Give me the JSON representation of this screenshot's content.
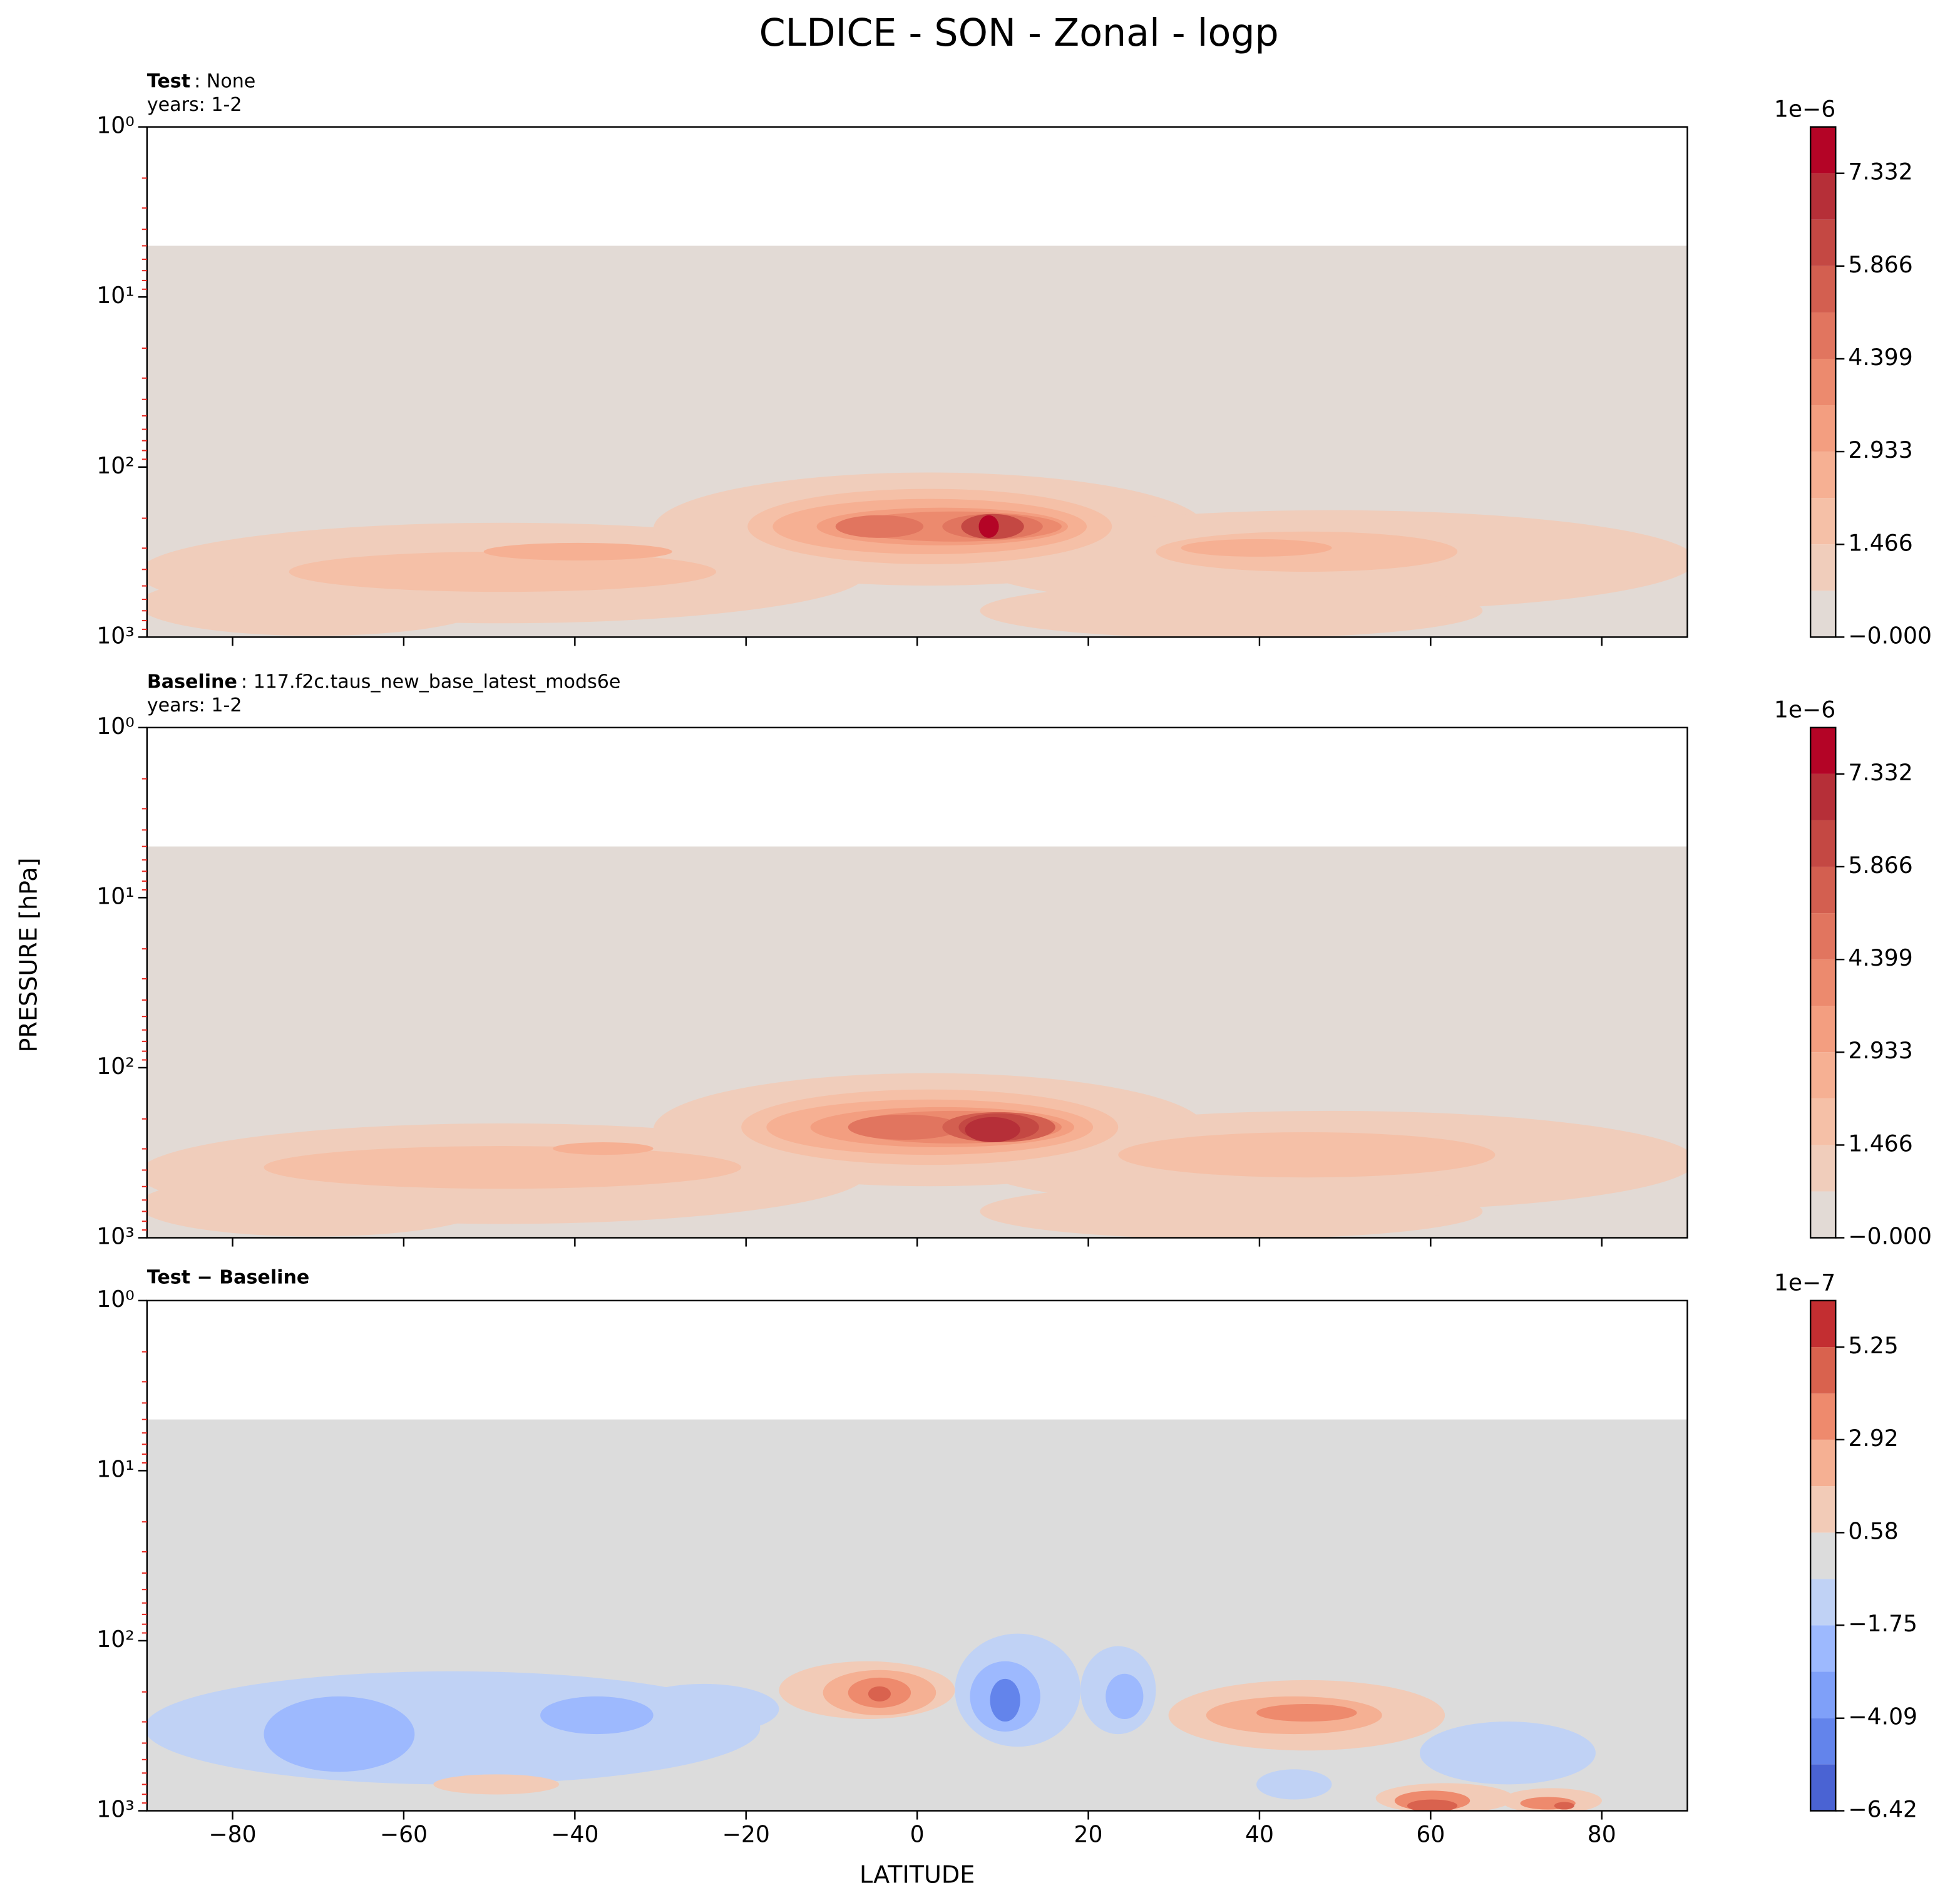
{
  "title": "CLDICE - SON - Zonal - logp",
  "xlabel": "LATITUDE",
  "ylabel": "PRESSURE [hPa]",
  "chart_data": [
    {
      "type": "contour",
      "title_bold": "Test",
      "title_rest": ": None",
      "subtitle": "years: 1-2",
      "xlim": [
        -90,
        90
      ],
      "xticks": [
        -80,
        -60,
        -40,
        -20,
        0,
        20,
        40,
        60,
        80
      ],
      "show_xticklabels": false,
      "ylim": [
        1,
        1000
      ],
      "log_y": true,
      "yticks": [
        {
          "value": 1,
          "label": "10⁰"
        },
        {
          "value": 10,
          "label": "10¹"
        },
        {
          "value": 100,
          "label": "10²"
        },
        {
          "value": 1000,
          "label": "10³"
        }
      ],
      "minor_tick_color": "#e8261f",
      "field_ptop": 5,
      "colorbar": {
        "offset_label": "1e−6",
        "levels": [
          0,
          0.733,
          1.466,
          2.2,
          2.933,
          3.666,
          4.399,
          5.132,
          5.866,
          6.599,
          7.332,
          8.065
        ],
        "colors": [
          "#e2dad5",
          "#f0cdbb",
          "#f5c0a7",
          "#f6b093",
          "#f39e80",
          "#ec8a6e",
          "#e1755f",
          "#d35f50",
          "#c44843",
          "#b62f38",
          "#b40426"
        ],
        "ticks": [
          {
            "value": 0,
            "label": "−0.000"
          },
          1.466,
          2.933,
          4.399,
          5.866,
          7.332
        ]
      }
    },
    {
      "type": "contour",
      "title_bold": "Baseline",
      "title_rest": ": 117.f2c.taus_new_base_latest_mods6e",
      "subtitle": "years: 1-2",
      "xlim": [
        -90,
        90
      ],
      "xticks": [
        -80,
        -60,
        -40,
        -20,
        0,
        20,
        40,
        60,
        80
      ],
      "show_xticklabels": false,
      "ylim": [
        1,
        1000
      ],
      "log_y": true,
      "yticks": [
        {
          "value": 1,
          "label": "10⁰"
        },
        {
          "value": 10,
          "label": "10¹"
        },
        {
          "value": 100,
          "label": "10²"
        },
        {
          "value": 1000,
          "label": "10³"
        }
      ],
      "minor_tick_color": "#e8261f",
      "field_ptop": 5,
      "colorbar": {
        "offset_label": "1e−6",
        "levels": [
          0,
          0.733,
          1.466,
          2.2,
          2.933,
          3.666,
          4.399,
          5.132,
          5.866,
          6.599,
          7.332,
          8.065
        ],
        "colors": [
          "#e2dad5",
          "#f0cdbb",
          "#f5c0a7",
          "#f6b093",
          "#f39e80",
          "#ec8a6e",
          "#e1755f",
          "#d35f50",
          "#c44843",
          "#b62f38",
          "#b40426"
        ],
        "ticks": [
          {
            "value": 0,
            "label": "−0.000"
          },
          1.466,
          2.933,
          4.399,
          5.866,
          7.332
        ]
      }
    },
    {
      "type": "contour",
      "title_bold": "Test − Baseline",
      "xlim": [
        -90,
        90
      ],
      "xticks": [
        {
          "value": -80,
          "label": "−80"
        },
        {
          "value": -60,
          "label": "−60"
        },
        {
          "value": -40,
          "label": "−40"
        },
        {
          "value": -20,
          "label": "−20"
        },
        0,
        20,
        40,
        60,
        80
      ],
      "show_xticklabels": true,
      "ylim": [
        1,
        1000
      ],
      "log_y": true,
      "yticks": [
        {
          "value": 1,
          "label": "10⁰"
        },
        {
          "value": 10,
          "label": "10¹"
        },
        {
          "value": 100,
          "label": "10²"
        },
        {
          "value": 1000,
          "label": "10³"
        }
      ],
      "minor_tick_color": "#e8261f",
      "field_ptop": 5,
      "colorbar": {
        "offset_label": "1e−7",
        "levels": [
          -6.42,
          -5.25,
          -4.09,
          -2.92,
          -1.75,
          -0.585,
          0.58,
          1.75,
          2.92,
          4.08,
          5.25,
          6.42
        ],
        "colors": [
          "#4a63d3",
          "#6384eb",
          "#7fa0f9",
          "#9db9fe",
          "#c0d2f5",
          "#dcdcdc",
          "#f2cbb7",
          "#f5b093",
          "#ee8a6d",
          "#d9624e",
          "#c32e31"
        ],
        "ticks": [
          {
            "value": -6.42,
            "label": "−6.42"
          },
          {
            "value": -4.09,
            "label": "−4.09"
          },
          {
            "value": -1.75,
            "label": "−1.75"
          },
          0.58,
          2.92,
          5.25
        ]
      }
    }
  ]
}
